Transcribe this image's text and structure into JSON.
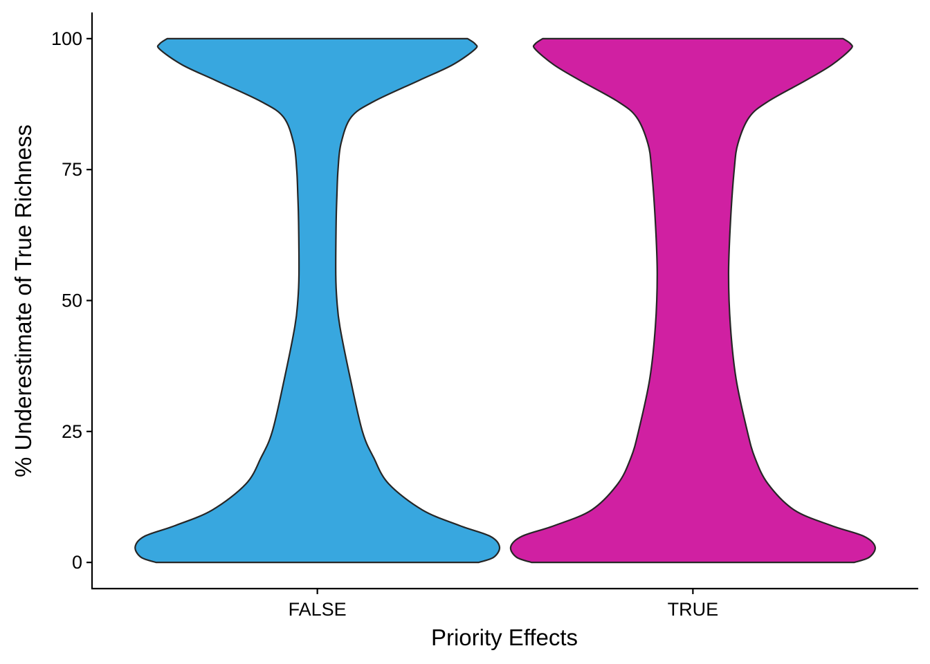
{
  "chart_data": {
    "type": "violin",
    "title": "",
    "xlabel": "Priority Effects",
    "ylabel": "% Underestimate of True Richness",
    "categories": [
      "FALSE",
      "TRUE"
    ],
    "ylim": [
      -5,
      105
    ],
    "yticks": [
      0,
      25,
      50,
      75,
      100
    ],
    "legend": "none",
    "grid": false,
    "series": [
      {
        "category": "FALSE",
        "color": "#38A7DF",
        "density_profile": [
          {
            "y": 0,
            "halfwidth": 0.43
          },
          {
            "y": 1,
            "halfwidth": 0.47
          },
          {
            "y": 3,
            "halfwidth": 0.485
          },
          {
            "y": 5,
            "halfwidth": 0.46
          },
          {
            "y": 7,
            "halfwidth": 0.38
          },
          {
            "y": 10,
            "halfwidth": 0.28
          },
          {
            "y": 15,
            "halfwidth": 0.19
          },
          {
            "y": 20,
            "halfwidth": 0.15
          },
          {
            "y": 25,
            "halfwidth": 0.12
          },
          {
            "y": 35,
            "halfwidth": 0.088
          },
          {
            "y": 45,
            "halfwidth": 0.06
          },
          {
            "y": 50,
            "halfwidth": 0.052
          },
          {
            "y": 55,
            "halfwidth": 0.049
          },
          {
            "y": 65,
            "halfwidth": 0.05
          },
          {
            "y": 70,
            "halfwidth": 0.052
          },
          {
            "y": 75,
            "halfwidth": 0.055
          },
          {
            "y": 80,
            "halfwidth": 0.063
          },
          {
            "y": 85,
            "halfwidth": 0.09
          },
          {
            "y": 88,
            "halfwidth": 0.15
          },
          {
            "y": 92,
            "halfwidth": 0.27
          },
          {
            "y": 95,
            "halfwidth": 0.36
          },
          {
            "y": 98,
            "halfwidth": 0.42
          },
          {
            "y": 99,
            "halfwidth": 0.42
          },
          {
            "y": 100,
            "halfwidth": 0.4
          }
        ]
      },
      {
        "category": "TRUE",
        "color": "#D020A2",
        "density_profile": [
          {
            "y": 0,
            "halfwidth": 0.43
          },
          {
            "y": 1,
            "halfwidth": 0.47
          },
          {
            "y": 3,
            "halfwidth": 0.485
          },
          {
            "y": 5,
            "halfwidth": 0.455
          },
          {
            "y": 7,
            "halfwidth": 0.37
          },
          {
            "y": 10,
            "halfwidth": 0.27
          },
          {
            "y": 15,
            "halfwidth": 0.2
          },
          {
            "y": 20,
            "halfwidth": 0.165
          },
          {
            "y": 25,
            "halfwidth": 0.145
          },
          {
            "y": 35,
            "halfwidth": 0.115
          },
          {
            "y": 45,
            "halfwidth": 0.1
          },
          {
            "y": 55,
            "halfwidth": 0.095
          },
          {
            "y": 65,
            "halfwidth": 0.1
          },
          {
            "y": 75,
            "halfwidth": 0.11
          },
          {
            "y": 80,
            "halfwidth": 0.12
          },
          {
            "y": 85,
            "halfwidth": 0.15
          },
          {
            "y": 88,
            "halfwidth": 0.2
          },
          {
            "y": 92,
            "halfwidth": 0.3
          },
          {
            "y": 95,
            "halfwidth": 0.37
          },
          {
            "y": 98,
            "halfwidth": 0.42
          },
          {
            "y": 99,
            "halfwidth": 0.42
          },
          {
            "y": 100,
            "halfwidth": 0.4
          }
        ]
      }
    ]
  }
}
